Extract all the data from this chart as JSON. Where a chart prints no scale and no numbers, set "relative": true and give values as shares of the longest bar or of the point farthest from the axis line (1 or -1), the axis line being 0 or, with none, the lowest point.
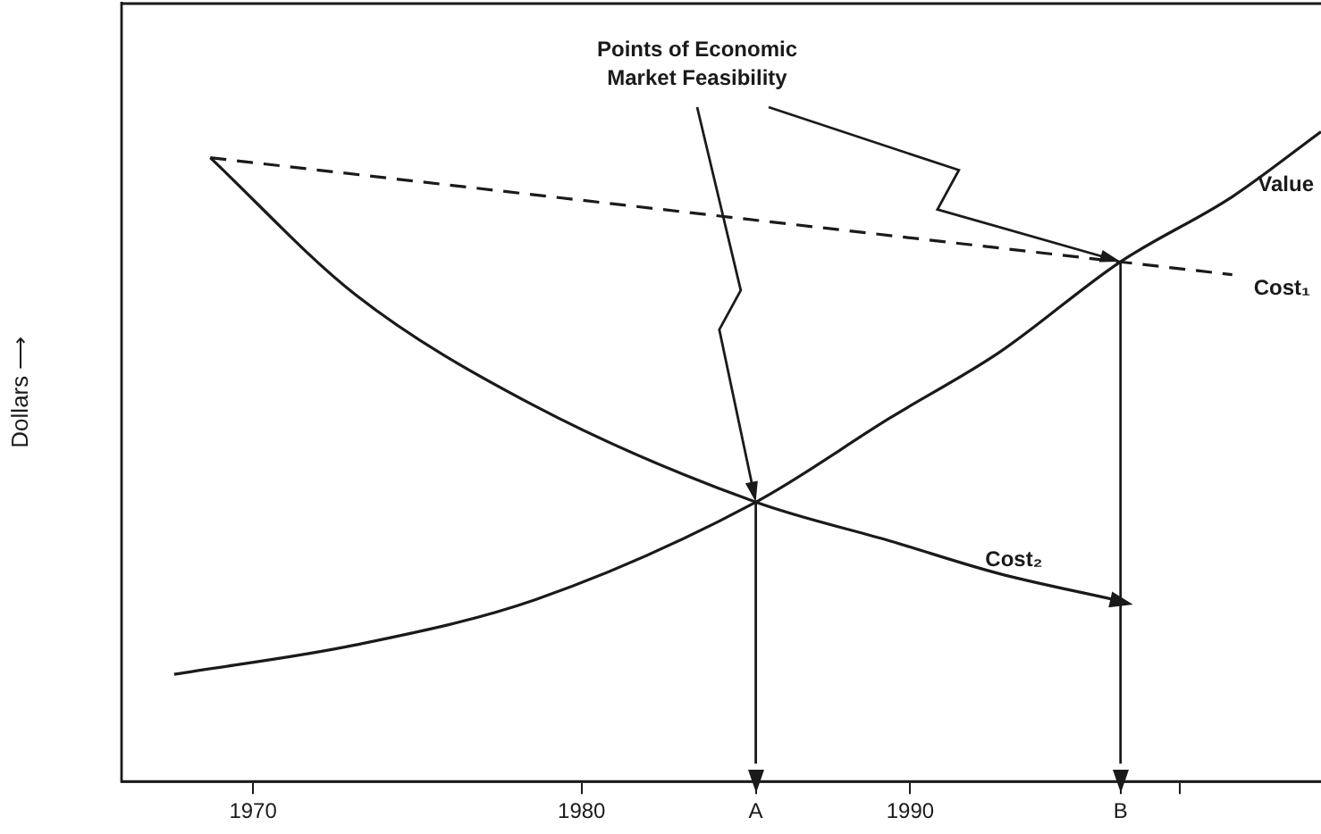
{
  "chart_data": {
    "type": "line",
    "relative": true,
    "ylabel": "Dollars ⟶",
    "xlim": [
      1966,
      2002.5
    ],
    "xticks": [
      1970,
      1980,
      {
        "value": 1985.3,
        "label": "A"
      },
      1990,
      {
        "value": 1996.4,
        "label": "B"
      },
      {
        "value": 1998.2,
        "label": null
      }
    ],
    "grid": false,
    "legend": false,
    "marker": "none",
    "series": [
      {
        "name": "Value",
        "color": "#1a1a1a",
        "line_style": "solid",
        "x": [
          1967.6,
          1973.1,
          1978.6,
          1985.3,
          1989.4,
          1992.7,
          1996.4,
          1999.8,
          2002.5
        ],
        "values": [
          0.165,
          0.21,
          0.28,
          0.43,
          0.56,
          0.66,
          0.8,
          0.9,
          1.0
        ]
      },
      {
        "name": "Cost₁",
        "color": "#1a1a1a",
        "line_style": "dashed",
        "x": [
          1968.7,
          1999.8
        ],
        "values": [
          0.96,
          0.78
        ]
      },
      {
        "name": "Cost₂",
        "color": "#1a1a1a",
        "line_style": "solid",
        "x": [
          1968.7,
          1973.1,
          1978.5,
          1985.3,
          1989.4,
          1992.7,
          1996.2
        ],
        "values": [
          0.96,
          0.75,
          0.58,
          0.43,
          0.37,
          0.32,
          0.28
        ]
      }
    ],
    "ref_lines": [
      {
        "axis": "x",
        "value": 1985.3
      },
      {
        "axis": "x",
        "value": 1996.4
      }
    ],
    "annotations": [
      "Points of Economic Market Feasibility"
    ]
  }
}
